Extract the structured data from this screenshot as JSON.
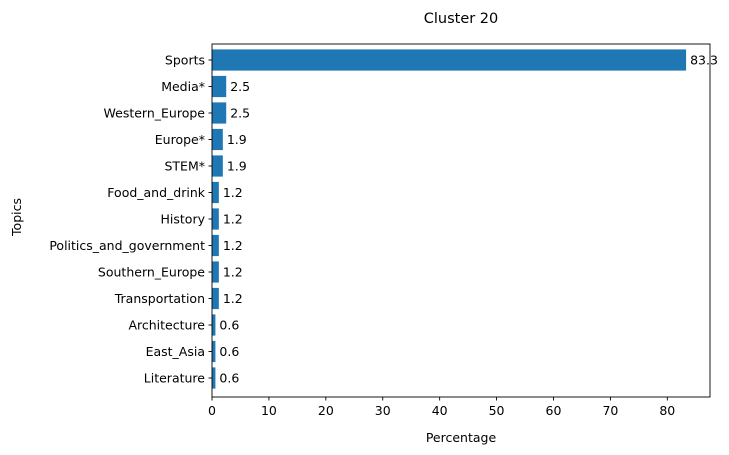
{
  "chart_data": {
    "type": "bar",
    "orientation": "horizontal",
    "title": "Cluster 20",
    "xlabel": "Percentage",
    "ylabel": "Topics",
    "categories": [
      "Sports",
      "Media*",
      "Western_Europe",
      "Europe*",
      "STEM*",
      "Food_and_drink",
      "History",
      "Politics_and_government",
      "Southern_Europe",
      "Transportation",
      "Architecture",
      "East_Asia",
      "Literature"
    ],
    "values": [
      83.3,
      2.5,
      2.5,
      1.9,
      1.9,
      1.2,
      1.2,
      1.2,
      1.2,
      1.2,
      0.6,
      0.6,
      0.6
    ],
    "data_labels": [
      "83.3",
      "2.5",
      "2.5",
      "1.9",
      "1.9",
      "1.2",
      "1.2",
      "1.2",
      "1.2",
      "1.2",
      "0.6",
      "0.6",
      "0.6"
    ],
    "xlim": [
      0,
      87.5
    ],
    "xticks": [
      0,
      10,
      20,
      30,
      40,
      50,
      60,
      70,
      80
    ],
    "xtick_labels": [
      "0",
      "10",
      "20",
      "30",
      "40",
      "50",
      "60",
      "70",
      "80"
    ],
    "grid": false,
    "bar_color": "#1f77b4"
  }
}
